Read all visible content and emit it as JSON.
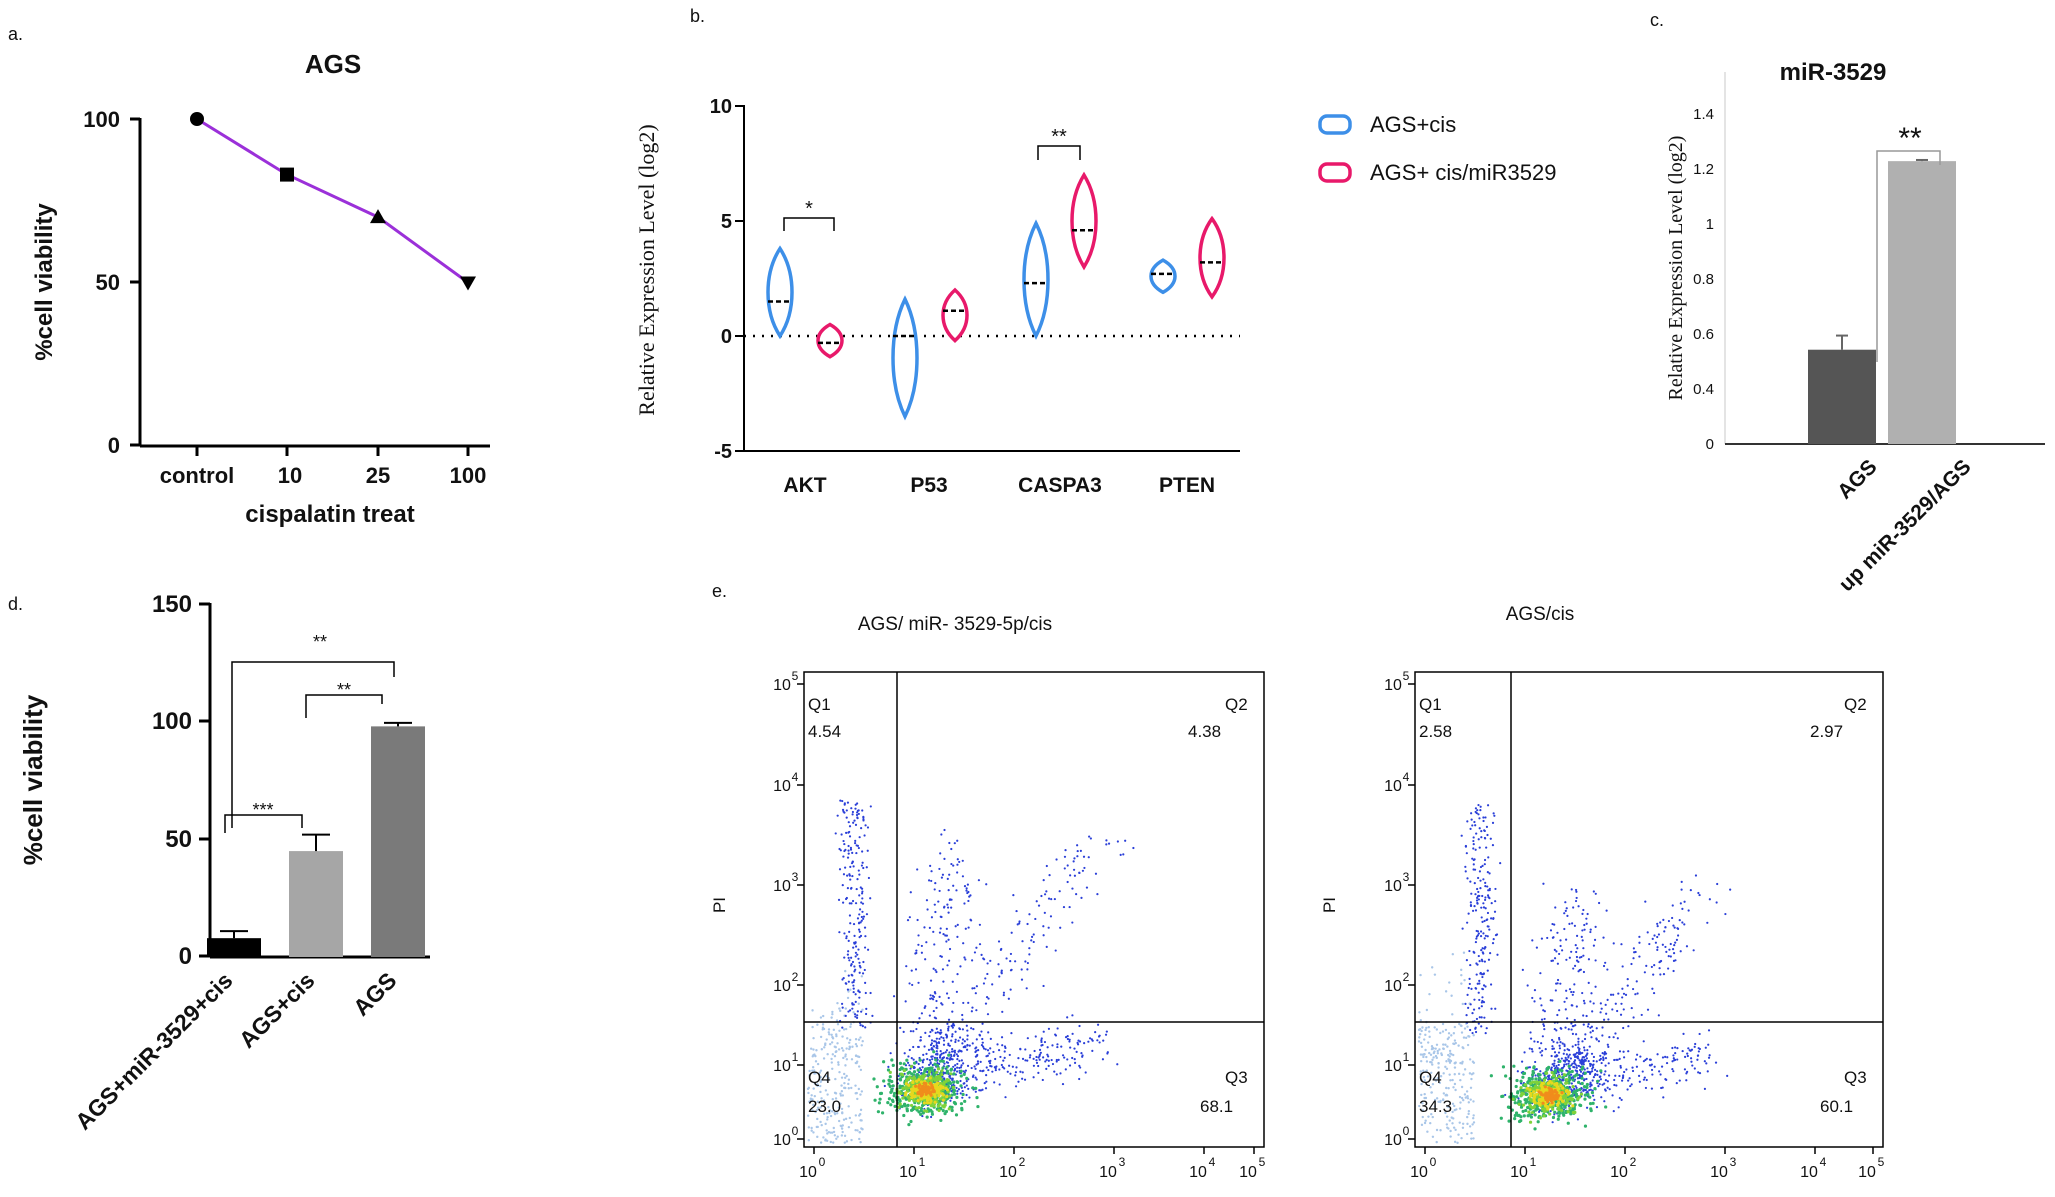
{
  "panel_letters": [
    "a.",
    "b.",
    "c.",
    "d.",
    "e."
  ],
  "chart_data": [
    {
      "panel": "a.",
      "type": "line",
      "title": "AGS",
      "xlabel": "cispalatin treat",
      "ylabel": "%cell viability",
      "categories": [
        "control",
        "10",
        "25",
        "100"
      ],
      "values": [
        100,
        83,
        70,
        50
      ],
      "markers": [
        "circle",
        "square",
        "triangle-up",
        "triangle-down"
      ],
      "ylim": [
        0,
        100
      ],
      "yticks": [
        0,
        50,
        100
      ],
      "color": "#9b30d9"
    },
    {
      "panel": "b.",
      "type": "violin",
      "ylabel": "Relative Expression Level (log2)",
      "categories": [
        "AKT",
        "P53",
        "CASPA3",
        "PTEN"
      ],
      "ylim": [
        -5,
        10
      ],
      "yticks": [
        -5,
        0,
        5,
        10
      ],
      "series": [
        {
          "name": "AGS+cis",
          "color": "#3d8fe8",
          "median": [
            1.5,
            0.0,
            2.3,
            2.7
          ],
          "range": [
            [
              0.0,
              3.8
            ],
            [
              -3.5,
              1.6
            ],
            [
              0.0,
              4.9
            ],
            [
              1.9,
              3.3
            ]
          ]
        },
        {
          "name": "AGS+ cis/miR3529",
          "color": "#e8196a",
          "median": [
            -0.3,
            1.1,
            4.6,
            3.2
          ],
          "range": [
            [
              -0.9,
              0.5
            ],
            [
              -0.2,
              2.0
            ],
            [
              3.0,
              7.0
            ],
            [
              1.7,
              5.1
            ]
          ]
        }
      ],
      "significance": [
        {
          "category": "AKT",
          "label": "*"
        },
        {
          "category": "CASPA3",
          "label": "**"
        }
      ]
    },
    {
      "panel": "c.",
      "type": "bar",
      "title": "miR-3529",
      "ylabel": "Relative Expression Level (log2)",
      "categories": [
        "AGS",
        "up miR-3529/AGS"
      ],
      "values": [
        0.4,
        1.2
      ],
      "errors": [
        0.06,
        0.005
      ],
      "colors": [
        "#555555",
        "#b0b0b0"
      ],
      "ylim": [
        0,
        1.4
      ],
      "yticks": [
        "0",
        "0.4",
        "0.6",
        "0.8",
        "1",
        "1.2",
        "1.4"
      ],
      "significance": "**"
    },
    {
      "panel": "d.",
      "type": "bar",
      "ylabel": "%cell viability",
      "categories": [
        "AGS+miR-3529+cis",
        "AGS+cis",
        "AGS"
      ],
      "values": [
        8,
        45,
        98
      ],
      "errors": [
        3,
        7,
        1.5
      ],
      "colors": [
        "#000000",
        "#a6a6a6",
        "#7a7a7a"
      ],
      "ylim": [
        0,
        150
      ],
      "yticks": [
        0,
        50,
        100,
        150
      ],
      "significance": [
        {
          "from": "AGS+miR-3529+cis",
          "to": "AGS+cis",
          "label": "***"
        },
        {
          "from": "AGS+cis",
          "to": "AGS",
          "label": "**"
        },
        {
          "from": "AGS+miR-3529+cis",
          "to": "AGS",
          "label": "**"
        }
      ]
    },
    {
      "panel": "e.",
      "type": "scatter",
      "ylabel": "PI",
      "axis_scale": "log",
      "xticks": [
        "10^0",
        "10^1",
        "10^2",
        "10^3",
        "10^4",
        "10^5"
      ],
      "yticks": [
        "10^0",
        "10^1",
        "10^2",
        "10^3",
        "10^4",
        "10^5"
      ],
      "plots": [
        {
          "title": "AGS/ miR- 3529-5p/cis",
          "quadrants": {
            "Q1": "4.54",
            "Q2": "4.38",
            "Q3": "68.1",
            "Q4": "23.0"
          }
        },
        {
          "title": "AGS/cis",
          "quadrants": {
            "Q1": "2.58",
            "Q2": "2.97",
            "Q3": "60.1",
            "Q4": "34.3"
          }
        }
      ]
    }
  ]
}
